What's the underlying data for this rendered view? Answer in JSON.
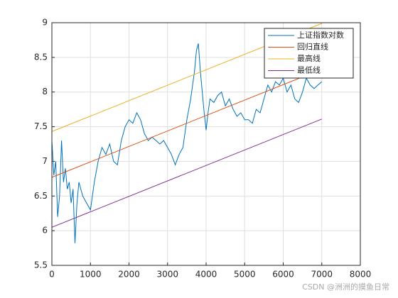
{
  "chart_data": {
    "type": "line",
    "xlim": [
      0,
      8000
    ],
    "xticks": [
      0,
      1000,
      2000,
      3000,
      4000,
      5000,
      6000,
      7000,
      8000
    ],
    "ylim": [
      5.5,
      9
    ],
    "yticks": [
      5.5,
      6,
      6.5,
      7,
      7.5,
      8,
      8.5,
      9
    ],
    "grid": true,
    "legend": "upper right",
    "series": [
      {
        "name": "上证指数对数",
        "color": "#0072bd",
        "x": [
          0,
          50,
          100,
          150,
          200,
          250,
          300,
          350,
          400,
          450,
          500,
          550,
          600,
          650,
          700,
          800,
          900,
          1000,
          1100,
          1200,
          1300,
          1400,
          1500,
          1600,
          1700,
          1800,
          1900,
          2000,
          2100,
          2200,
          2300,
          2400,
          2500,
          2600,
          2700,
          2800,
          2900,
          3000,
          3100,
          3200,
          3300,
          3400,
          3500,
          3600,
          3700,
          3750,
          3800,
          3850,
          3900,
          3950,
          4000,
          4050,
          4100,
          4200,
          4300,
          4400,
          4500,
          4600,
          4700,
          4800,
          4900,
          5000,
          5100,
          5200,
          5300,
          5400,
          5500,
          5600,
          5700,
          5800,
          5900,
          6000,
          6100,
          6200,
          6300,
          6400,
          6500,
          6600,
          6700,
          6800,
          6900,
          7000
        ],
        "values": [
          7.3,
          6.8,
          7.0,
          6.2,
          6.5,
          7.3,
          6.7,
          6.9,
          6.6,
          6.7,
          6.4,
          6.6,
          5.82,
          6.4,
          6.7,
          6.5,
          6.4,
          6.3,
          6.7,
          7.0,
          7.2,
          7.1,
          7.25,
          7.0,
          6.95,
          7.3,
          7.5,
          7.6,
          7.55,
          7.7,
          7.6,
          7.4,
          7.3,
          7.35,
          7.3,
          7.25,
          7.3,
          7.2,
          7.1,
          6.95,
          7.1,
          7.2,
          7.6,
          7.9,
          8.3,
          8.6,
          8.7,
          8.3,
          8.0,
          7.7,
          7.45,
          7.7,
          7.9,
          7.85,
          7.95,
          8.0,
          7.8,
          7.9,
          7.75,
          7.65,
          7.7,
          7.6,
          7.6,
          7.55,
          7.75,
          7.7,
          7.9,
          8.1,
          8.0,
          8.15,
          8.1,
          8.2,
          8.0,
          8.1,
          7.9,
          7.85,
          8.0,
          8.2,
          8.1,
          8.05,
          8.1,
          8.15
        ]
      },
      {
        "name": "回归直线",
        "color": "#d95319",
        "x": [
          0,
          7000
        ],
        "values": [
          6.77,
          8.33
        ]
      },
      {
        "name": "最高线",
        "color": "#edb120",
        "x": [
          0,
          7000
        ],
        "values": [
          7.43,
          8.99
        ]
      },
      {
        "name": "最低线",
        "color": "#7e2f8e",
        "x": [
          0,
          7000
        ],
        "values": [
          6.05,
          7.61
        ]
      }
    ]
  },
  "watermark": "CSDN @洲洲的摸鱼日常"
}
